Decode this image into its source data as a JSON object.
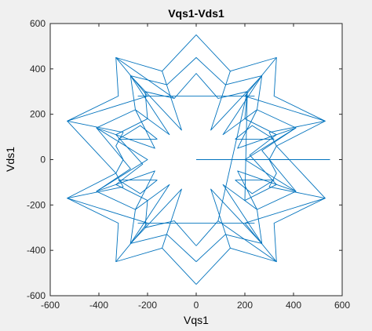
{
  "chart_data": {
    "type": "line",
    "title": "Vqs1-Vds1",
    "xlabel": "Vqs1",
    "ylabel": "Vds1",
    "xlim": [
      -600,
      600
    ],
    "ylim": [
      -600,
      600
    ],
    "xticks": [
      -600,
      -400,
      -200,
      0,
      200,
      400,
      600
    ],
    "yticks": [
      -600,
      -400,
      -200,
      0,
      200,
      400,
      600
    ],
    "xtick_labels": [
      "-600",
      "-400",
      "-200",
      "0",
      "200",
      "400",
      "600"
    ],
    "ytick_labels": [
      "-600",
      "-400",
      "-200",
      "0",
      "200",
      "400",
      "600"
    ],
    "grid": false,
    "box": true,
    "colors": {
      "figure_background": "#f0f0f0",
      "axes_background": "#ffffff",
      "axis": "#262626",
      "line": "#0072bd"
    },
    "series": [
      {
        "values": [
          [
            0,
            0
          ],
          [
            550,
            0
          ]
        ]
      },
      {
        "values": [
          [
            0,
            -550
          ],
          [
            -140,
            -390
          ],
          [
            -330,
            -450
          ],
          [
            -320,
            -280
          ],
          [
            -530,
            -170
          ],
          [
            -330,
            -60
          ],
          [
            -530,
            170
          ],
          [
            -320,
            280
          ],
          [
            -330,
            450
          ],
          [
            -140,
            390
          ],
          [
            0,
            550
          ],
          [
            140,
            390
          ],
          [
            330,
            450
          ],
          [
            320,
            280
          ],
          [
            530,
            170
          ],
          [
            330,
            60
          ],
          [
            530,
            -170
          ],
          [
            320,
            -280
          ],
          [
            330,
            -450
          ],
          [
            140,
            -390
          ],
          [
            0,
            -550
          ]
        ]
      },
      {
        "values": [
          [
            0,
            -450
          ],
          [
            -120,
            -330
          ],
          [
            -270,
            -370
          ],
          [
            -250,
            -220
          ],
          [
            -410,
            -140
          ],
          [
            -270,
            -40
          ],
          [
            -410,
            140
          ],
          [
            -250,
            220
          ],
          [
            -270,
            370
          ],
          [
            -120,
            330
          ],
          [
            0,
            450
          ],
          [
            120,
            330
          ],
          [
            270,
            370
          ],
          [
            250,
            220
          ],
          [
            410,
            140
          ],
          [
            270,
            40
          ],
          [
            410,
            -140
          ],
          [
            250,
            -220
          ],
          [
            270,
            -370
          ],
          [
            120,
            -330
          ],
          [
            0,
            -450
          ]
        ]
      },
      {
        "values": [
          [
            0,
            -380
          ],
          [
            -90,
            -270
          ],
          [
            -210,
            -300
          ],
          [
            -200,
            -180
          ],
          [
            -330,
            -110
          ],
          [
            -220,
            -20
          ],
          [
            -330,
            110
          ],
          [
            -200,
            180
          ],
          [
            -210,
            300
          ],
          [
            -90,
            270
          ],
          [
            0,
            380
          ],
          [
            90,
            270
          ],
          [
            210,
            300
          ],
          [
            200,
            180
          ],
          [
            330,
            110
          ],
          [
            220,
            20
          ],
          [
            330,
            -110
          ],
          [
            200,
            -180
          ],
          [
            210,
            300
          ],
          [
            90,
            -270
          ],
          [
            0,
            -380
          ]
        ]
      },
      {
        "values": [
          [
            -140,
            -390
          ],
          [
            -60,
            -130
          ],
          [
            -270,
            -370
          ],
          [
            -110,
            -110
          ],
          [
            -250,
            -220
          ],
          [
            -170,
            -50
          ],
          [
            -410,
            -140
          ],
          [
            -200,
            0
          ],
          [
            -410,
            140
          ],
          [
            -170,
            50
          ],
          [
            -250,
            220
          ],
          [
            -110,
            110
          ],
          [
            -270,
            370
          ],
          [
            -60,
            130
          ],
          [
            -140,
            390
          ]
        ]
      },
      {
        "values": [
          [
            140,
            390
          ],
          [
            60,
            130
          ],
          [
            270,
            370
          ],
          [
            110,
            110
          ],
          [
            250,
            220
          ],
          [
            170,
            50
          ],
          [
            410,
            140
          ],
          [
            200,
            0
          ],
          [
            410,
            -140
          ],
          [
            170,
            -50
          ],
          [
            250,
            -220
          ],
          [
            110,
            -110
          ],
          [
            270,
            -370
          ],
          [
            60,
            -130
          ],
          [
            140,
            -390
          ]
        ]
      },
      {
        "values": [
          [
            -330,
            -450
          ],
          [
            -200,
            -280
          ],
          [
            -530,
            -170
          ],
          [
            -300,
            -120
          ],
          [
            -330,
            -60
          ],
          [
            -300,
            0
          ],
          [
            -330,
            60
          ],
          [
            -300,
            120
          ],
          [
            -530,
            170
          ],
          [
            -200,
            280
          ],
          [
            -330,
            450
          ],
          [
            -90,
            270
          ]
        ]
      },
      {
        "values": [
          [
            330,
            450
          ],
          [
            200,
            280
          ],
          [
            530,
            170
          ],
          [
            300,
            120
          ],
          [
            330,
            60
          ],
          [
            300,
            0
          ],
          [
            330,
            -60
          ],
          [
            300,
            -120
          ],
          [
            530,
            -170
          ],
          [
            200,
            -280
          ],
          [
            330,
            -450
          ],
          [
            90,
            -270
          ]
        ]
      },
      {
        "values": [
          [
            -240,
            -280
          ],
          [
            240,
            -280
          ]
        ]
      },
      {
        "values": [
          [
            -240,
            280
          ],
          [
            240,
            280
          ]
        ]
      },
      {
        "values": [
          [
            -160,
            -90
          ],
          [
            -320,
            -90
          ],
          [
            -230,
            -150
          ],
          [
            -160,
            -90
          ]
        ]
      },
      {
        "values": [
          [
            160,
            90
          ],
          [
            320,
            90
          ],
          [
            230,
            150
          ],
          [
            160,
            90
          ]
        ]
      },
      {
        "values": [
          [
            -160,
            90
          ],
          [
            -320,
            90
          ],
          [
            -230,
            150
          ],
          [
            -160,
            90
          ]
        ]
      },
      {
        "values": [
          [
            160,
            -90
          ],
          [
            320,
            -90
          ],
          [
            230,
            -150
          ],
          [
            160,
            -90
          ]
        ]
      }
    ]
  }
}
